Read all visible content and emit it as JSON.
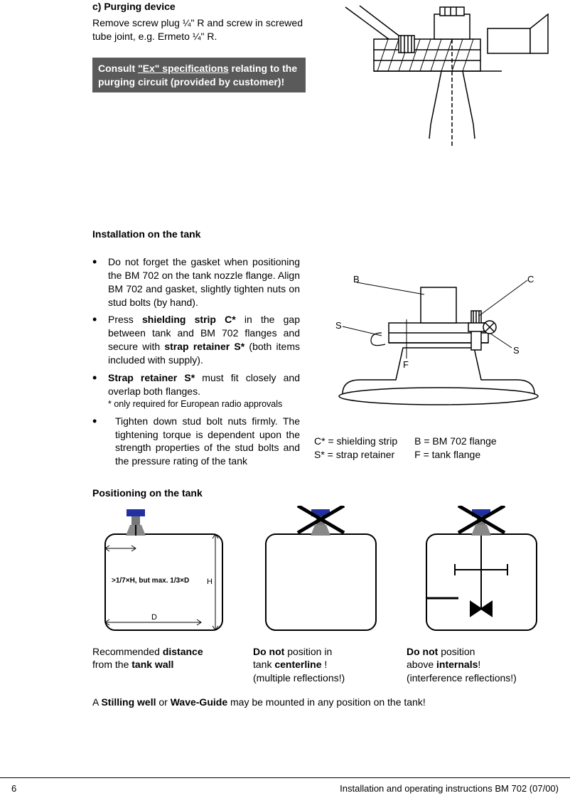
{
  "section_c": {
    "heading": "c) Purging device",
    "body": "Remove screw plug ¼\" R and screw in screwed tube joint, e.g. Ermeto ¼\" R.",
    "warning_pre": "Consult ",
    "warning_ul": "\"Ex\" specifications",
    "warning_post": " relating to the purging circuit (provided by customer)!"
  },
  "install": {
    "heading": "Installation on the tank",
    "bullets": [
      {
        "text": "Do not forget the gasket when positioning the BM 702 on the tank nozzle flange. Align BM 702 and gasket, slightly tighten nuts on stud bolts (by hand)."
      },
      {
        "text_html": "Press <b>shielding strip C*</b> in the gap between tank and BM 702 flanges and secure with  <b>strap retainer S*</b>  (both items included with supply)."
      },
      {
        "text_html": "<b>Strap retainer S*</b>  must fit closely and overlap both flanges.",
        "note": "* only required for European radio approvals"
      },
      {
        "text": "Tighten down stud bolt nuts firmly. The tightening torque is dependent upon the strength properties of the stud bolts and the pressure rating of the tank",
        "indent": true
      }
    ],
    "legend": {
      "c": "C* = shielding strip",
      "b": "B = BM 702 flange",
      "s": "S* = strap retainer",
      "f": "F = tank flange"
    },
    "diagram_labels": {
      "B": "B",
      "C": "C",
      "S": "S",
      "S2": "S",
      "F": "F"
    }
  },
  "positioning": {
    "heading": "Positioning on the tank",
    "tank1": {
      "offset_text": ">1/7×H, but max. 1/3×D",
      "H": "H",
      "D": "D",
      "label_html": "Recommended <b>distance</b><br> from the <b>tank wall</b>"
    },
    "tank2": {
      "label_html": "<b>Do not</b>  position in<br>tank <b>centerline</b> !<br>(multiple reflections!)"
    },
    "tank3": {
      "label_html": "<b>Do not</b>  position<br>above <b>internals</b>!<br>(interference reflections!)"
    },
    "bottom_note_html": "A <b>Stilling well</b> or <b>Wave-Guide</b> may be mounted in any position on the tank!"
  },
  "footer": {
    "page": "6",
    "title": "Installation and operating instructions BM 702  (07/00)"
  },
  "colors": {
    "warning_bg": "#5a5a5a",
    "warning_fg": "#ffffff",
    "sensor_blue": "#2030a0",
    "stroke": "#000000"
  }
}
